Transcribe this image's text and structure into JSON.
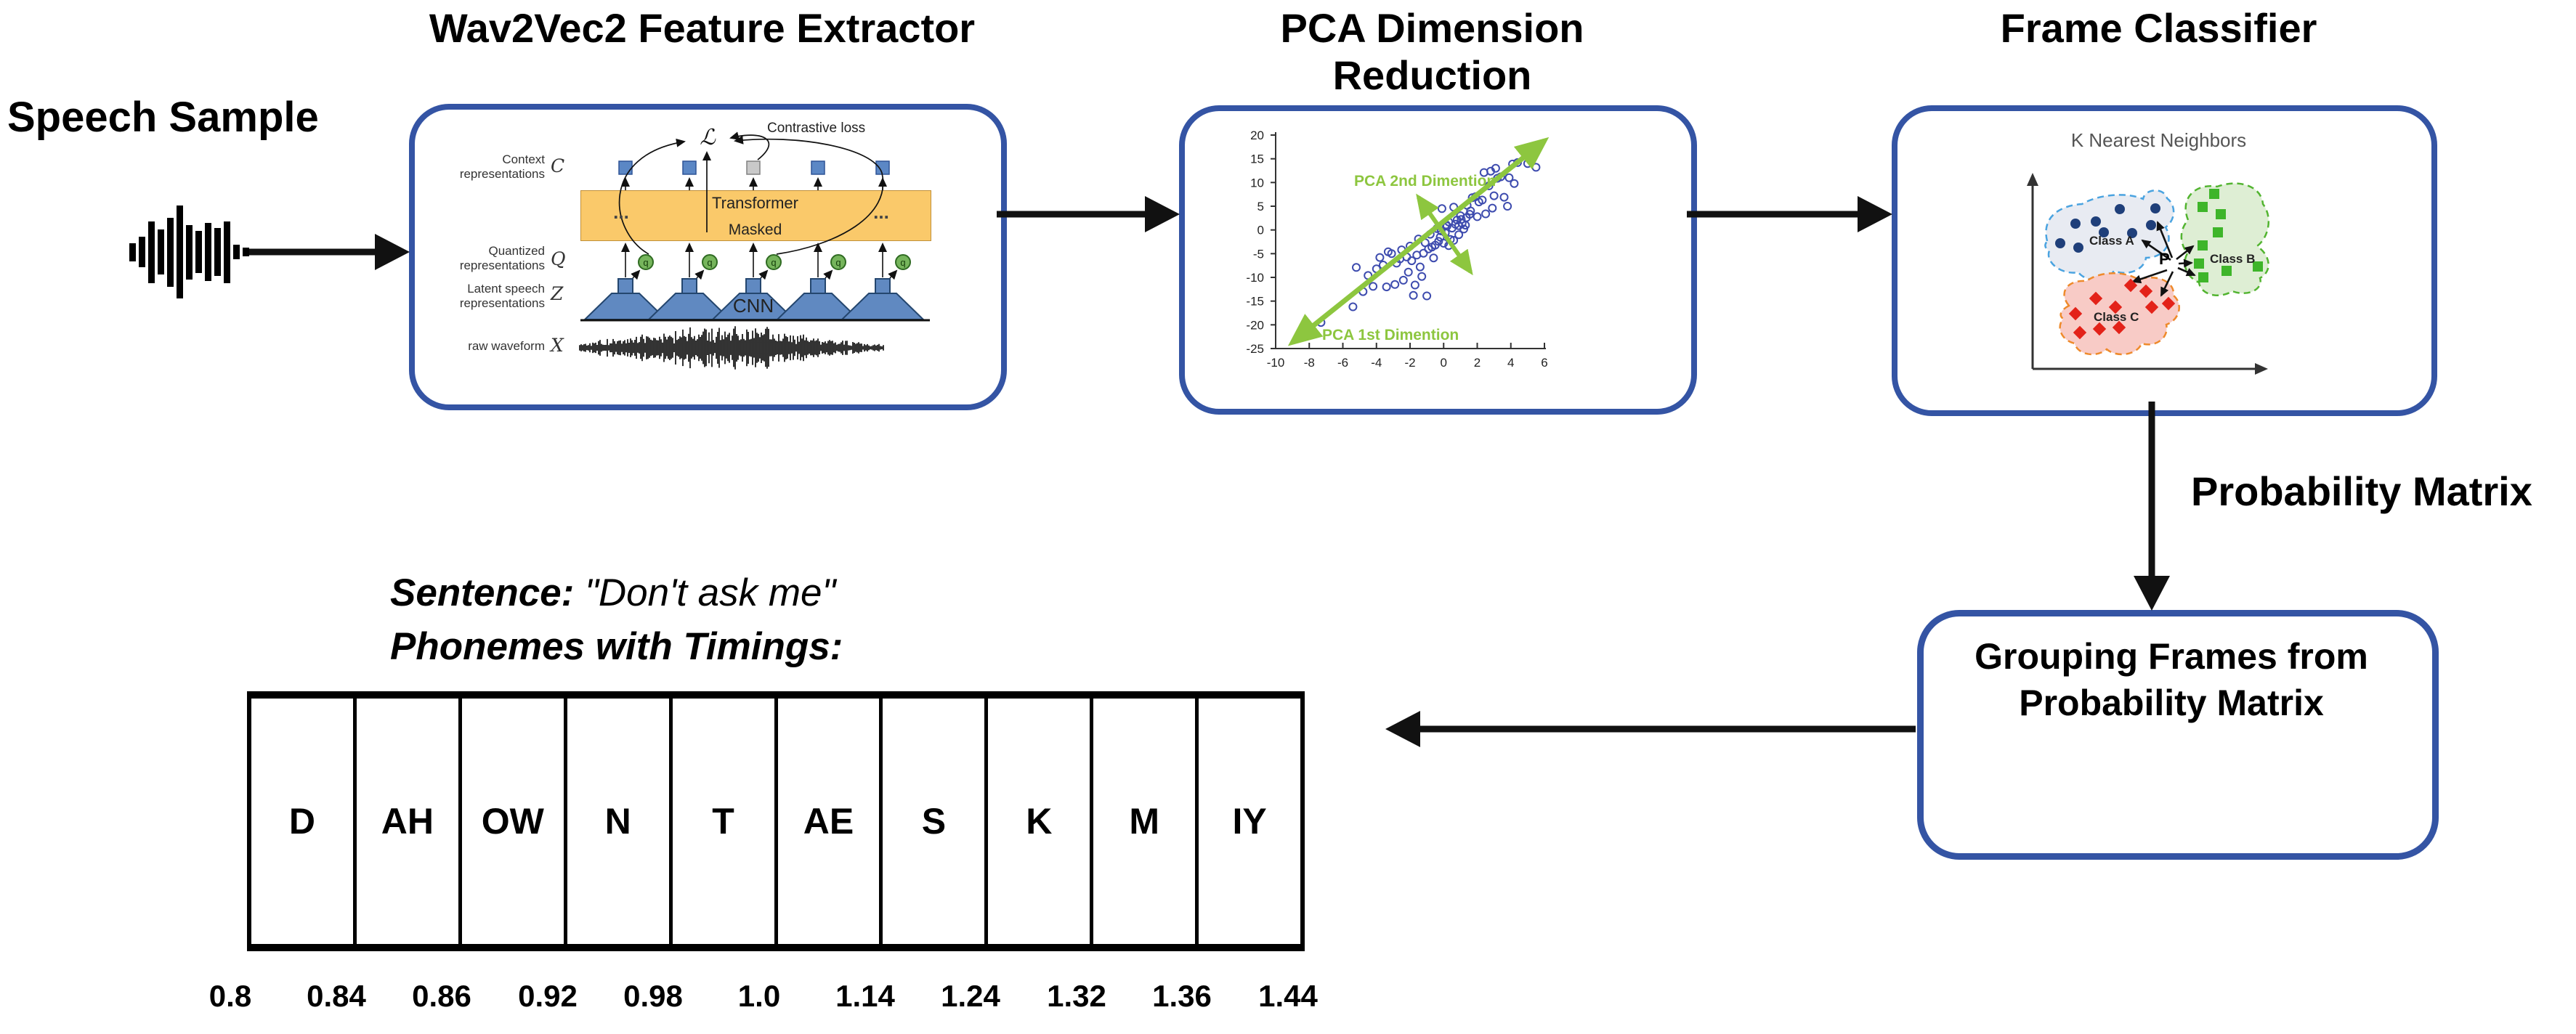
{
  "titles": {
    "wav2vec2": "Wav2Vec2 Feature Extractor",
    "pca": "PCA Dimension Reduction",
    "classifier": "Frame Classifier"
  },
  "speech_sample_label": "Speech Sample",
  "probability_matrix_label": "Probability Matrix",
  "grouping_box": {
    "line1": "Grouping Frames from",
    "line2": "Probability Matrix"
  },
  "wav2vec2_inner": {
    "contrastive_loss": "Contrastive loss",
    "loss_symbol": "ℒ",
    "context_line1": "Context",
    "context_line2": "representations",
    "context_symbol": "C",
    "quantized_line1": "Quantized",
    "quantized_line2": "representations",
    "quantized_symbol": "Q",
    "latent_line1": "Latent speech",
    "latent_line2": "representations",
    "latent_symbol": "Z",
    "raw_label": "raw waveform",
    "raw_symbol": "X",
    "transformer": "Transformer",
    "masked": "Masked",
    "cnn": "CNN",
    "ellipsis": "...",
    "q": "q"
  },
  "phoneme_section": {
    "sentence_prefix": "Sentence:",
    "sentence_quote": " \"Don't ask me\"",
    "heading": "Phonemes with Timings:",
    "phonemes": [
      "D",
      "AH",
      "OW",
      "N",
      "T",
      "AE",
      "S",
      "K",
      "M",
      "IY"
    ],
    "timings": [
      "0.8",
      "0.84",
      "0.86",
      "0.92",
      "0.98",
      "1.0",
      "1.14",
      "1.24",
      "1.32",
      "1.36",
      "1.44"
    ]
  },
  "colors": {
    "box_border": "#3454a4",
    "arrow_black": "#111111",
    "transformer_fill": "#fac96a",
    "funnel_blue": "#6089c1",
    "square_blue": "#5b87c5",
    "masked_gray": "#c9c9c9",
    "q_green": "#76b55c",
    "pca_green": "#8dc63f",
    "scatter_blue": "#3d4bae"
  },
  "chart_data": [
    {
      "id": "pca_scatter",
      "type": "scatter",
      "axis1_label": "PCA 1st Dimention",
      "axis2_label": "PCA 2nd Dimention",
      "xlim": [
        -10,
        6
      ],
      "ylim": [
        -25,
        20
      ],
      "xticks": [
        -10,
        -8,
        -6,
        -4,
        -2,
        0,
        2,
        4,
        6
      ],
      "yticks": [
        20,
        15,
        10,
        5,
        0,
        -5,
        -10,
        -15,
        -20,
        -25
      ],
      "marker": "open-circle",
      "marker_color": "#3d4bae",
      "arrow_color": "#8dc63f",
      "principal_axis": [
        [
          -9.0,
          -23.7
        ],
        [
          6.0,
          18.8
        ]
      ],
      "secondary_axis": [
        [
          -1.5,
          6.9
        ],
        [
          1.6,
          -8.8
        ]
      ],
      "points": [
        [
          -8.1,
          -20.3
        ],
        [
          -7.3,
          -19.5
        ],
        [
          -5.4,
          -16.2
        ],
        [
          -4.2,
          -11.9
        ],
        [
          -3.4,
          -12.0
        ],
        [
          -4.5,
          -9.6
        ],
        [
          -4.0,
          -8.2
        ],
        [
          -3.6,
          -7.4
        ],
        [
          -3.1,
          -5.0
        ],
        [
          -3.3,
          -4.6
        ],
        [
          -2.6,
          -6.1
        ],
        [
          -2.2,
          -5.7
        ],
        [
          -2.5,
          -4.2
        ],
        [
          -1.9,
          -6.5
        ],
        [
          -1.6,
          -5.3
        ],
        [
          -1.4,
          -7.8
        ],
        [
          -1.8,
          -13.8
        ],
        [
          -2.4,
          -10.6
        ],
        [
          -2.9,
          -11.5
        ],
        [
          -1.2,
          -4.9
        ],
        [
          -0.9,
          -4.0
        ],
        [
          -0.7,
          -3.6
        ],
        [
          -0.5,
          -3.2
        ],
        [
          -1.1,
          -2.7
        ],
        [
          -1.5,
          -1.9
        ],
        [
          -0.8,
          -0.9
        ],
        [
          -0.3,
          -2.4
        ],
        [
          -0.2,
          -1.5
        ],
        [
          0.1,
          -0.6
        ],
        [
          -0.4,
          0.3
        ],
        [
          0.2,
          0.8
        ],
        [
          0.5,
          0.4
        ],
        [
          0.7,
          1.2
        ],
        [
          0.3,
          1.7
        ],
        [
          0.9,
          0.9
        ],
        [
          1.1,
          1.4
        ],
        [
          1.3,
          1.0
        ],
        [
          0.8,
          2.1
        ],
        [
          1.0,
          3.0
        ],
        [
          0.6,
          4.8
        ],
        [
          -0.1,
          4.5
        ],
        [
          1.4,
          5.2
        ],
        [
          1.7,
          6.8
        ],
        [
          1.9,
          7.0
        ],
        [
          1.6,
          4.0
        ],
        [
          2.1,
          5.9
        ],
        [
          2.3,
          6.3
        ],
        [
          2.7,
          9.3
        ],
        [
          2.4,
          12.1
        ],
        [
          2.8,
          12.4
        ],
        [
          3.2,
          10.9
        ],
        [
          3.4,
          11.2
        ],
        [
          3.0,
          7.2
        ],
        [
          3.6,
          6.9
        ],
        [
          3.9,
          11.0
        ],
        [
          4.1,
          13.9
        ],
        [
          4.4,
          14.2
        ],
        [
          5.3,
          17.6
        ],
        [
          5.0,
          14.0
        ],
        [
          5.5,
          13.2
        ],
        [
          3.8,
          5.0
        ],
        [
          2.9,
          4.6
        ],
        [
          0.4,
          -2.0
        ],
        [
          -0.6,
          -5.9
        ],
        [
          -2.0,
          -3.4
        ],
        [
          -2.8,
          -7.0
        ],
        [
          -1.3,
          -9.8
        ],
        [
          -1.7,
          -11.6
        ],
        [
          -1.0,
          -13.9
        ],
        [
          0.0,
          -2.8
        ],
        [
          0.3,
          -3.3
        ],
        [
          0.6,
          -2.2
        ],
        [
          0.9,
          -1.0
        ],
        [
          1.2,
          0.2
        ],
        [
          -0.15,
          -0.2
        ],
        [
          0.15,
          1.1
        ],
        [
          1.05,
          2.2
        ],
        [
          1.35,
          2.6
        ],
        [
          1.55,
          3.3
        ],
        [
          -2.1,
          -8.9
        ],
        [
          -3.8,
          -5.8
        ],
        [
          -4.8,
          -13.0
        ],
        [
          -5.2,
          -7.9
        ],
        [
          2.0,
          2.8
        ],
        [
          2.5,
          3.4
        ],
        [
          4.2,
          9.8
        ],
        [
          3.1,
          13.0
        ]
      ]
    },
    {
      "id": "knn_clusters",
      "type": "scatter",
      "title": "K Nearest Neighbors",
      "query_label": "P",
      "classes": [
        {
          "name": "Class A",
          "marker": "circle",
          "color": "#1f3f7a",
          "points": [
            [
              2857,
              308
            ],
            [
              2885,
              305
            ],
            [
              2918,
              288
            ],
            [
              2967,
              287
            ],
            [
              2961,
              310
            ],
            [
              2896,
              320
            ],
            [
              2935,
              321
            ],
            [
              2836,
              335
            ],
            [
              2861,
              341
            ]
          ]
        },
        {
          "name": "Class B",
          "marker": "square",
          "color": "#3eb52a",
          "points": [
            [
              3048,
              267
            ],
            [
              3032,
              285
            ],
            [
              3057,
              295
            ],
            [
              3053,
              320
            ],
            [
              3032,
              338
            ],
            [
              3027,
              363
            ],
            [
              3033,
              382
            ],
            [
              3065,
              373
            ],
            [
              3108,
              367
            ]
          ]
        },
        {
          "name": "Class C",
          "marker": "diamond",
          "color": "#e32219",
          "points": [
            [
              2933,
              393
            ],
            [
              2954,
              401
            ],
            [
              2885,
              411
            ],
            [
              2912,
              423
            ],
            [
              2962,
              423
            ],
            [
              2985,
              418
            ],
            [
              2857,
              432
            ],
            [
              2863,
              458
            ],
            [
              2890,
              453
            ],
            [
              2917,
              451
            ]
          ]
        }
      ]
    }
  ]
}
